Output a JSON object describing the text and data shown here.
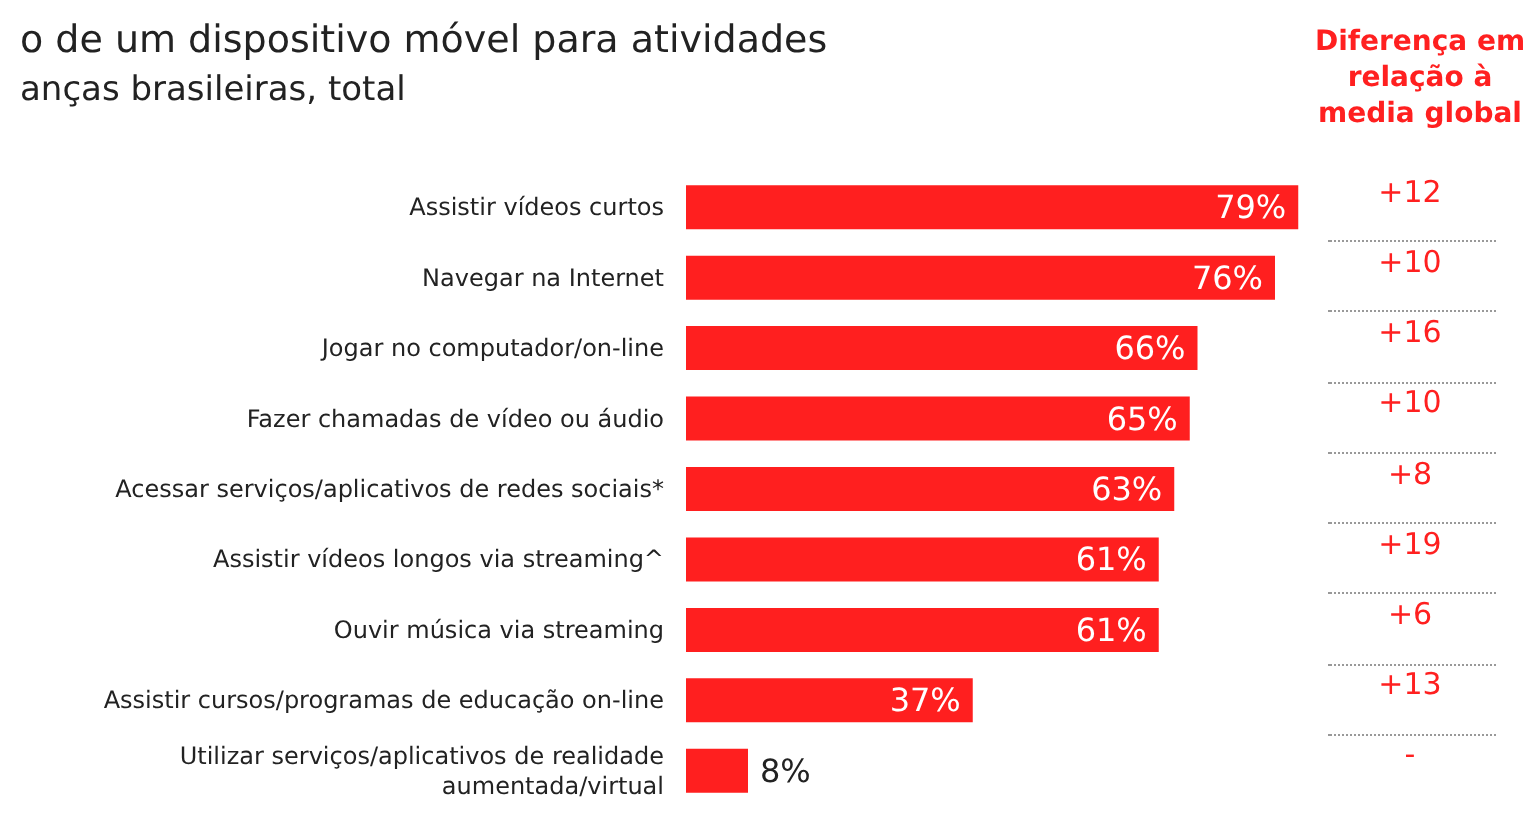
{
  "chart_data": {
    "type": "bar",
    "orientation": "horizontal",
    "title": "o de um dispositivo móvel para atividades",
    "subtitle": "anças brasileiras, total",
    "categories": [
      "Assistir vídeos curtos",
      "Navegar na Internet",
      "Jogar no computador/on-line",
      "Fazer chamadas de vídeo ou áudio",
      "Acessar serviços/aplicativos de redes sociais*",
      "Assistir vídeos longos via streaming^",
      "Ouvir música via streaming",
      "Assistir cursos/programas de educação on-line",
      "Utilizar serviços/aplicativos de realidade\naumentada/virtual"
    ],
    "values": [
      79,
      76,
      66,
      65,
      63,
      61,
      61,
      37,
      8
    ],
    "value_labels": [
      "79%",
      "76%",
      "66%",
      "65%",
      "63%",
      "61%",
      "61%",
      "37%",
      "8%"
    ],
    "color": "#ff1f1f",
    "annotations": [
      "Diferença em\nrelação à\nmedia global",
      "+12",
      "+10",
      "+16",
      "+10",
      "+8",
      "+19",
      "+6",
      "+13",
      "-"
    ]
  }
}
